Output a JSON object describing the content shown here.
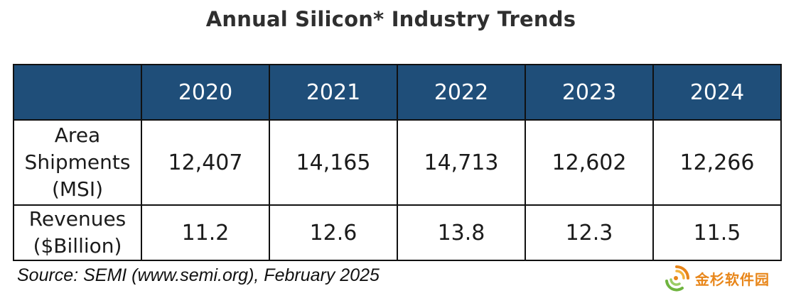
{
  "title": "Annual Silicon* Industry Trends",
  "table": {
    "header": [
      "",
      "2020",
      "2021",
      "2022",
      "2023",
      "2024"
    ],
    "rows": [
      {
        "label_lines": [
          "Area",
          "Shipments",
          "(MSI)"
        ],
        "values": [
          "12,407",
          "14,165",
          "14,713",
          "12,602",
          "12,266"
        ]
      },
      {
        "label_lines": [
          "Revenues",
          "($Billion)"
        ],
        "values": [
          "11.2",
          "12.6",
          "13.8",
          "12.3",
          "11.5"
        ]
      }
    ]
  },
  "source": "Source: SEMI (www.semi.org), February 2025",
  "watermark": {
    "text": "金杉软件园",
    "icon": "swirl-logo-icon"
  },
  "colors": {
    "header_bg": "#1f4e79",
    "header_text": "#ffffff",
    "border": "#111111",
    "watermark_orange": "#e8861a",
    "watermark_green": "#6fb43f"
  }
}
